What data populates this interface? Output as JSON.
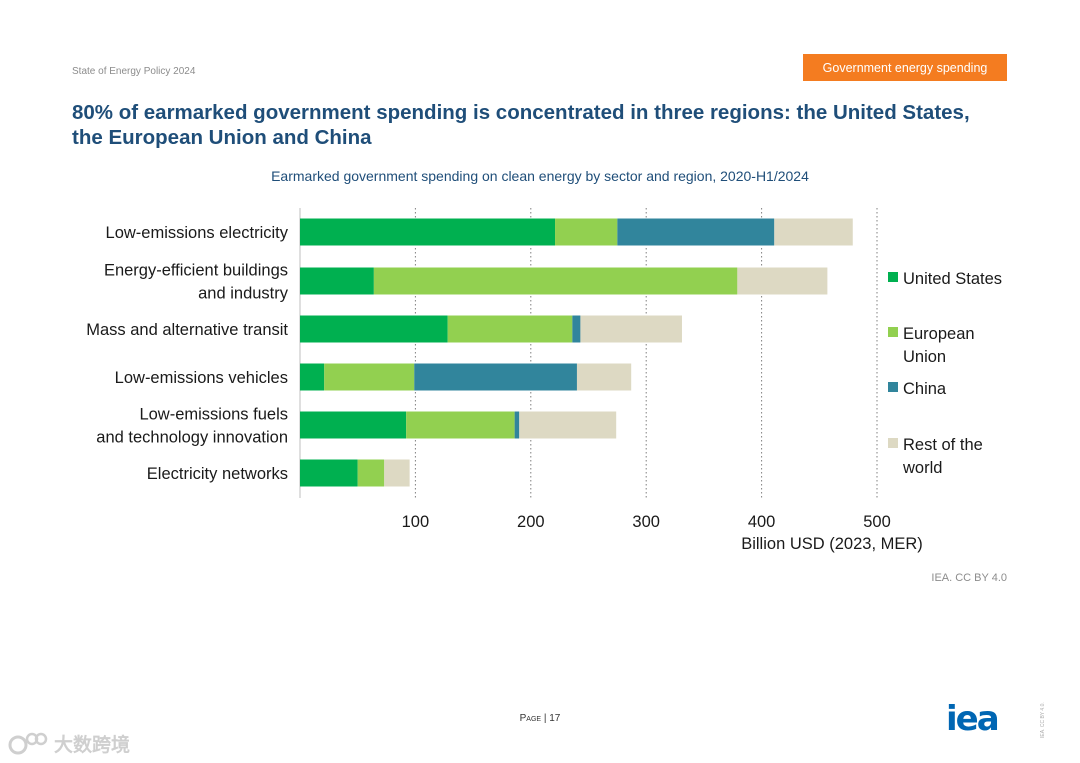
{
  "header": {
    "doc_label": "State of Energy Policy 2024",
    "section_badge": "Government energy spending",
    "title": "80% of earmarked government spending is concentrated in three regions: the United States, the European Union and China"
  },
  "footer": {
    "credit": "IEA. CC BY 4.0",
    "page_word": "Page",
    "page_sep": " | ",
    "page_number": "17",
    "logo_text": "iea",
    "side_credit": "IEA. CC BY 4.0.",
    "watermark_text": "大数跨境"
  },
  "colors": {
    "united_states": "#00b050",
    "european_union": "#92d050",
    "china": "#31859c",
    "rest_of_world": "#ddd9c3",
    "title_blue": "#1f4e79",
    "badge_orange": "#f47c20"
  },
  "chart_data": {
    "type": "bar",
    "orientation": "horizontal",
    "stacked": true,
    "title": "Earmarked government spending on clean energy by sector and region, 2020-H1/2024",
    "xlabel": "Billion USD (2023, MER)",
    "ylabel": "",
    "xlim": [
      0,
      500
    ],
    "xticks": [
      100,
      200,
      300,
      400,
      500
    ],
    "grid": "vertical dotted",
    "legend_position": "right",
    "categories": [
      [
        "Low-emissions electricity"
      ],
      [
        "Energy-efficient buildings",
        "and industry"
      ],
      [
        "Mass and alternative transit"
      ],
      [
        "Low-emissions vehicles"
      ],
      [
        "Low-emissions fuels",
        "and technology innovation"
      ],
      [
        "Electricity networks"
      ]
    ],
    "series": [
      {
        "name": "United States",
        "legend_lines": [
          "United States"
        ],
        "color_key": "united_states",
        "values": [
          221,
          64,
          128,
          21,
          92,
          50
        ]
      },
      {
        "name": "European Union",
        "legend_lines": [
          "European",
          "Union"
        ],
        "color_key": "european_union",
        "values": [
          54,
          315,
          108,
          78,
          94,
          23
        ]
      },
      {
        "name": "China",
        "legend_lines": [
          "China"
        ],
        "color_key": "china",
        "values": [
          136,
          0,
          7,
          141,
          4,
          0
        ]
      },
      {
        "name": "Rest of the world",
        "legend_lines": [
          "Rest of the",
          "world"
        ],
        "color_key": "rest_of_world",
        "values": [
          68,
          78,
          88,
          47,
          84,
          22
        ]
      }
    ]
  }
}
